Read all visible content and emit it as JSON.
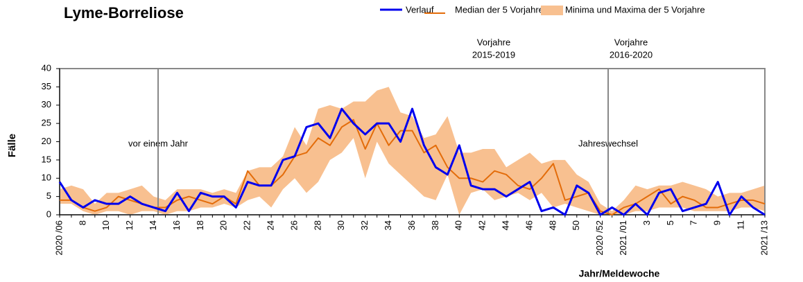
{
  "chart_data": {
    "type": "line",
    "title": "Lyme-Borreliose",
    "y_label": "Fälle",
    "x_label": "Jahr/Meldewoche",
    "categories": [
      "2020 /06",
      null,
      "8",
      null,
      "10",
      null,
      "12",
      null,
      "14",
      null,
      "16",
      null,
      "18",
      null,
      "20",
      null,
      "22",
      null,
      "24",
      null,
      "26",
      null,
      "28",
      null,
      "30",
      null,
      "32",
      null,
      "34",
      null,
      "36",
      null,
      "38",
      null,
      "40",
      null,
      "42",
      null,
      "44",
      null,
      "46",
      null,
      "48",
      null,
      "50",
      null,
      "2020 /52",
      null,
      "2021 /01",
      null,
      "3",
      null,
      "5",
      null,
      "7",
      null,
      "9",
      null,
      "11",
      null,
      "2021 /13"
    ],
    "ylim": [
      0,
      40
    ],
    "yticks": [
      0,
      5,
      10,
      15,
      20,
      25,
      30,
      35,
      40
    ],
    "series": [
      {
        "name": "Verlauf",
        "color": "#0000ee",
        "values": [
          9,
          4,
          2,
          4,
          3,
          3,
          5,
          3,
          2,
          1,
          6,
          1,
          6,
          5,
          5,
          2,
          9,
          8,
          8,
          15,
          16,
          24,
          25,
          21,
          29,
          25,
          22,
          25,
          25,
          20,
          29,
          19,
          13,
          11,
          19,
          8,
          7,
          7,
          5,
          7,
          9,
          1,
          2,
          0,
          8,
          6,
          0,
          2,
          0,
          3,
          0,
          6,
          7,
          1,
          2,
          3,
          9,
          0,
          5,
          2,
          0
        ]
      },
      {
        "name": "Median der 5 Vorjahre",
        "color": "#e36c0a",
        "values": [
          4,
          4,
          2,
          1,
          2,
          5,
          4,
          3,
          2,
          2,
          4,
          5,
          4,
          3,
          5,
          3,
          12,
          8,
          8,
          11,
          16,
          17,
          21,
          19,
          24,
          26,
          18,
          25,
          19,
          23,
          23,
          17,
          19,
          13,
          10,
          10,
          9,
          12,
          11,
          8,
          7,
          10,
          14,
          4,
          5,
          6,
          1,
          0,
          2,
          3,
          5,
          7,
          3,
          5,
          4,
          2,
          2,
          3,
          4,
          4,
          3
        ]
      },
      {
        "name": "Minima und Maxima der 5 Vorjahre",
        "color": "#f8c090",
        "high": [
          7,
          8,
          7,
          3,
          6,
          6,
          7,
          8,
          5,
          4,
          7,
          7,
          7,
          6,
          7,
          6,
          12,
          13,
          13,
          16,
          24,
          19,
          29,
          30,
          29,
          31,
          31,
          34,
          35,
          28,
          27,
          21,
          22,
          27,
          17,
          17,
          18,
          18,
          13,
          15,
          17,
          14,
          15,
          15,
          11,
          9,
          3,
          1,
          4,
          8,
          7,
          8,
          8,
          9,
          8,
          7,
          5,
          6,
          6,
          7,
          8
        ],
        "low": [
          3,
          3,
          1,
          0,
          1,
          1,
          0,
          1,
          1,
          0,
          1,
          1,
          2,
          2,
          3,
          2,
          4,
          5,
          2,
          7,
          10,
          6,
          9,
          15,
          17,
          21,
          10,
          20,
          14,
          11,
          8,
          5,
          4,
          11,
          0,
          6,
          7,
          4,
          5,
          6,
          4,
          6,
          2,
          3,
          2,
          1,
          0,
          0,
          0,
          1,
          1,
          2,
          2,
          2,
          1,
          1,
          1,
          1,
          2,
          2,
          1
        ]
      }
    ],
    "annotations": [
      "vor einem Jahr",
      "Jahreswechsel",
      "Vorjahre",
      "2015-2019",
      "Vorjahre",
      "2016-2020"
    ]
  }
}
